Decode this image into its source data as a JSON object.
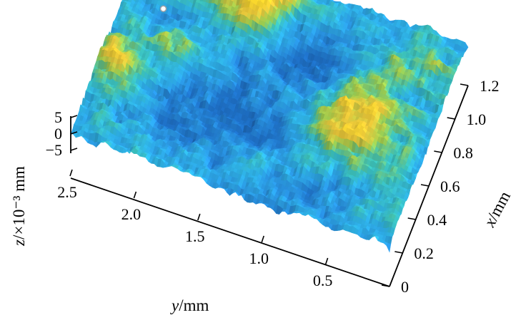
{
  "chart_data": {
    "type": "surface",
    "colormap": [
      "#1e6fc4",
      "#2a95e0",
      "#2fb3e6",
      "#3cc0b8",
      "#9ccc4f",
      "#e8c63a",
      "#f6d52c"
    ],
    "x_axis": {
      "label_italic": "x",
      "label_unit": "/mm",
      "range": [
        0,
        1.2
      ],
      "ticks": [
        {
          "value": 0,
          "label": "0"
        },
        {
          "value": 0.2,
          "label": "0.2"
        },
        {
          "value": 0.4,
          "label": "0.4"
        },
        {
          "value": 0.6,
          "label": "0.6"
        },
        {
          "value": 0.8,
          "label": "0.8"
        },
        {
          "value": 1.0,
          "label": "1.0"
        },
        {
          "value": 1.2,
          "label": "1.2"
        }
      ]
    },
    "y_axis": {
      "label_italic": "y",
      "label_unit": "/mm",
      "range": [
        0,
        2.5
      ],
      "ticks": [
        {
          "value": 0.5,
          "label": "0.5"
        },
        {
          "value": 1.0,
          "label": "1.0"
        },
        {
          "value": 1.5,
          "label": "1.5"
        },
        {
          "value": 2.0,
          "label": "2.0"
        },
        {
          "value": 2.5,
          "label": "2.5"
        }
      ]
    },
    "z_axis": {
      "label_italic": "z",
      "label_unit": "/×10⁻³ mm",
      "range": [
        -5,
        5
      ],
      "ticks": [
        {
          "value": -5,
          "label": "−5"
        },
        {
          "value": 0,
          "label": "0"
        },
        {
          "value": 5,
          "label": "5"
        }
      ]
    },
    "surface": {
      "description_free": true,
      "high_regions": [
        {
          "x": 1.15,
          "y": 2.2,
          "amp": 4.8,
          "sx": 0.12,
          "sy": 0.28
        },
        {
          "x": 1.12,
          "y": 1.85,
          "amp": 4.5,
          "sx": 0.1,
          "sy": 0.25
        },
        {
          "x": 1.05,
          "y": 1.45,
          "amp": 3.2,
          "sx": 0.06,
          "sy": 0.2
        },
        {
          "x": 0.92,
          "y": 1.55,
          "amp": 3.6,
          "sx": 0.07,
          "sy": 0.14
        },
        {
          "x": 0.55,
          "y": 0.55,
          "amp": 4.0,
          "sx": 0.17,
          "sy": 0.22
        },
        {
          "x": 0.45,
          "y": 2.35,
          "amp": 3.4,
          "sx": 0.12,
          "sy": 0.12
        },
        {
          "x": 0.62,
          "y": 2.0,
          "amp": 2.8,
          "sx": 0.08,
          "sy": 0.1
        },
        {
          "x": 0.95,
          "y": 0.25,
          "amp": 1.8,
          "sx": 0.08,
          "sy": 0.2
        },
        {
          "x": 0.2,
          "y": 1.15,
          "amp": 1.5,
          "sx": 0.1,
          "sy": 0.3
        }
      ],
      "low_regions": [
        {
          "x": 0.35,
          "y": 1.5,
          "amp": -2.8,
          "sx": 0.18,
          "sy": 0.35
        },
        {
          "x": 0.85,
          "y": 1.05,
          "amp": -2.5,
          "sx": 0.14,
          "sy": 0.25
        },
        {
          "x": 0.15,
          "y": 0.8,
          "amp": -2.2,
          "sx": 0.12,
          "sy": 0.25
        },
        {
          "x": 0.8,
          "y": 2.15,
          "amp": -1.8,
          "sx": 0.06,
          "sy": 0.1
        }
      ]
    },
    "marker": {
      "x": 0.8,
      "y": 2.18,
      "z": 1.0
    }
  }
}
